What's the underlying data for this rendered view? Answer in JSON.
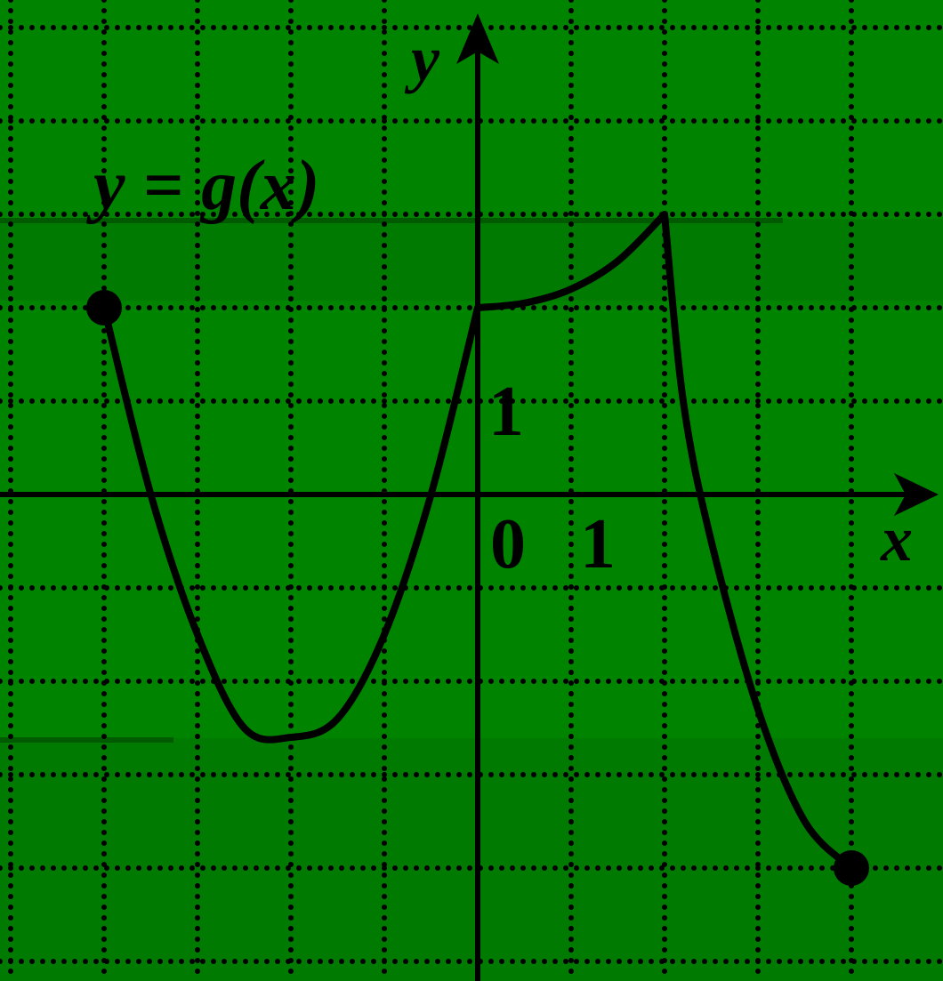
{
  "colors": {
    "background": "#008400",
    "band": "#007a00",
    "band_line": "#005a00",
    "ink": "#000000"
  },
  "chart_data": {
    "type": "line",
    "title": "",
    "function_label": "y = g(x)",
    "xlabel": "x",
    "ylabel": "y",
    "xlim": [
      -5,
      5
    ],
    "ylim": [
      -5,
      5
    ],
    "grid": true,
    "grid_style": "dotted",
    "x_tick_labels": [
      "0",
      "1"
    ],
    "y_tick_labels": [
      "1"
    ],
    "series": [
      {
        "points": [
          {
            "x": -4,
            "y": 2
          },
          {
            "x": -3.5,
            "y": 0
          },
          {
            "x": -3,
            "y": -1.5
          },
          {
            "x": -2.5,
            "y": -2.5
          },
          {
            "x": -2,
            "y": -2.6
          },
          {
            "x": -1.5,
            "y": -2.4
          },
          {
            "x": -1,
            "y": -1.5
          },
          {
            "x": -0.5,
            "y": 0
          },
          {
            "x": 0,
            "y": 2
          },
          {
            "x": 0.5,
            "y": 2.05
          },
          {
            "x": 1,
            "y": 2.2
          },
          {
            "x": 1.5,
            "y": 2.5
          },
          {
            "x": 2,
            "y": 3
          },
          {
            "x": 2.2,
            "y": 1
          },
          {
            "x": 2.5,
            "y": -0.5
          },
          {
            "x": 3,
            "y": -2.3
          },
          {
            "x": 3.5,
            "y": -3.5
          },
          {
            "x": 4,
            "y": -4
          }
        ],
        "pieces": [
          {
            "from": -4,
            "to": 0,
            "shape": "parabola-like arc, minimum near x=-2"
          },
          {
            "from": 0,
            "to": 2,
            "shape": "increasing convex arc"
          },
          {
            "from": 2,
            "to": 4,
            "shape": "decreasing curve"
          }
        ],
        "endpoints": [
          {
            "x": -4,
            "y": 2,
            "filled": true
          },
          {
            "x": 4,
            "y": -4,
            "filled": true
          }
        ]
      }
    ]
  }
}
